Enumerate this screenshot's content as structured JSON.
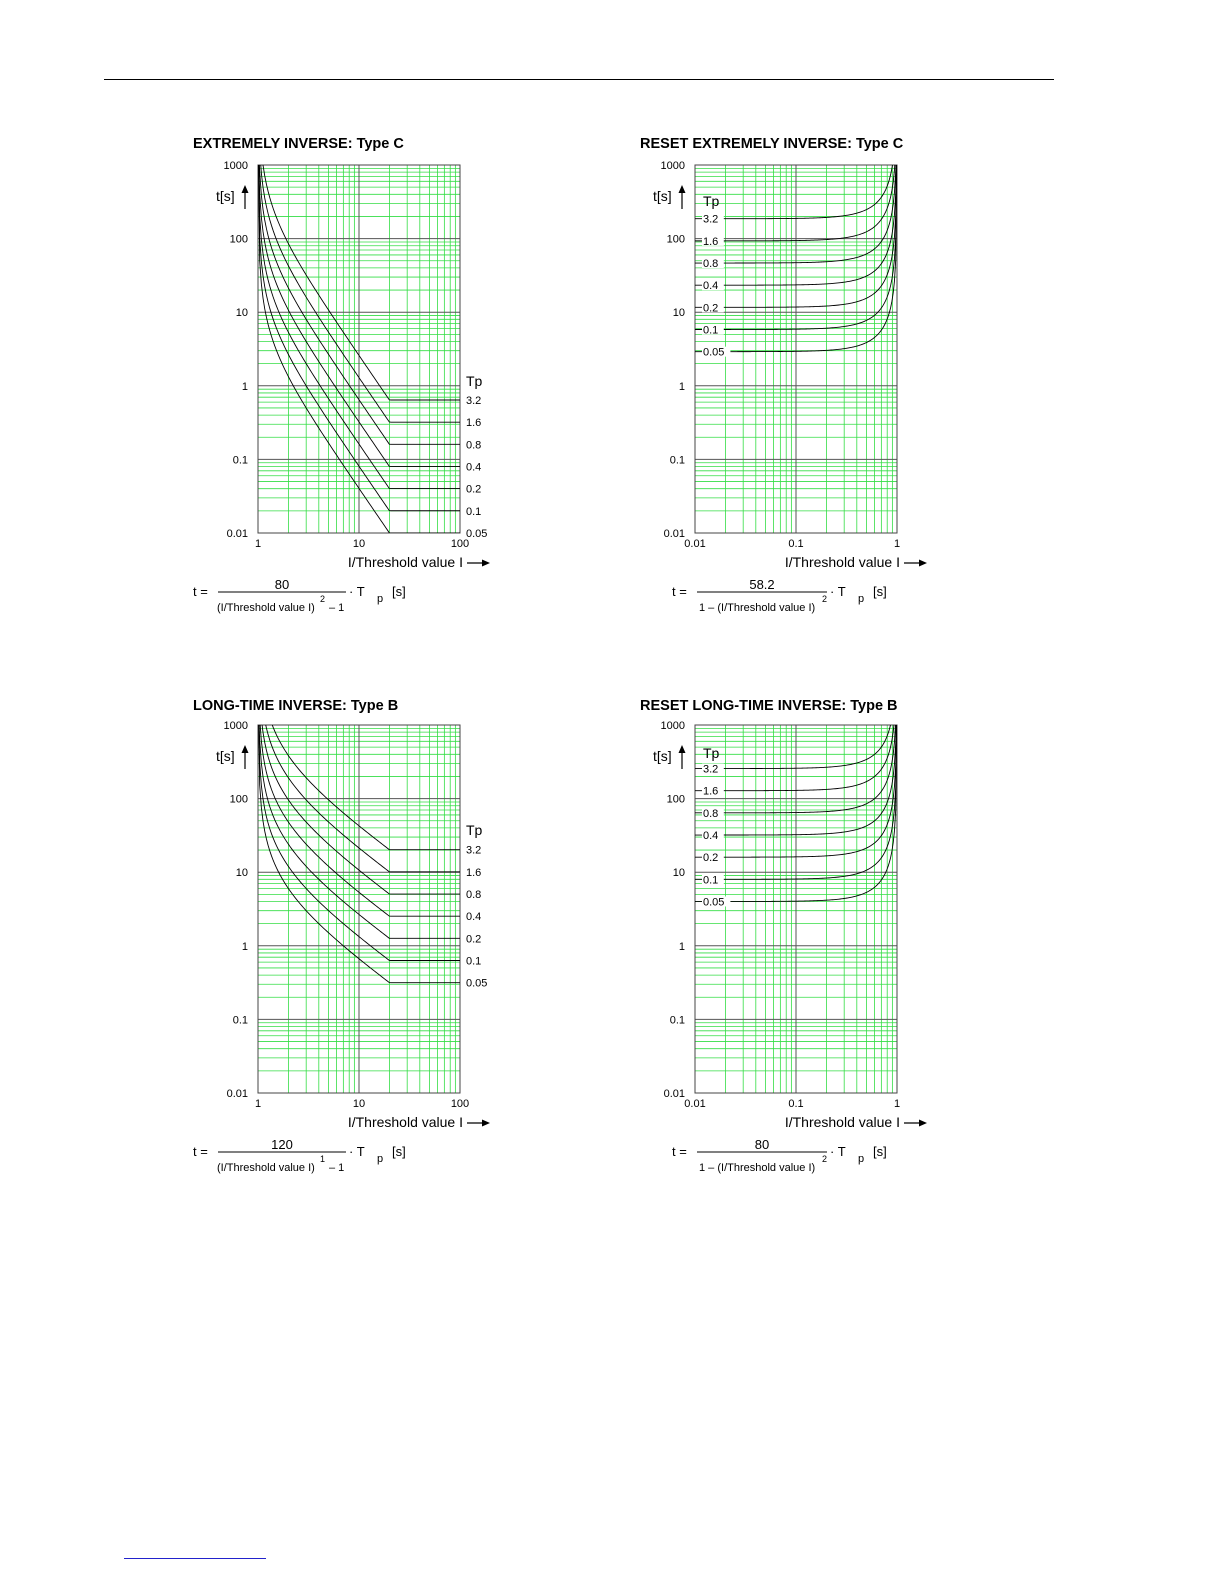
{
  "page": {
    "colors": {
      "grid": "#33dd44",
      "major_grid": "#555555",
      "curve": "#000000",
      "header_rule": "#000000",
      "footer_rule": "#2222cc"
    }
  },
  "chart_data": [
    {
      "type": "line",
      "title": "EXTREMELY INVERSE: Type C",
      "ylabel": "t[s]",
      "xlabel": "I/Threshold value I",
      "x_scale": "log",
      "y_scale": "log",
      "xlim": [
        1,
        100
      ],
      "ylim": [
        0.01,
        1000
      ],
      "x_ticks": [
        "1",
        "10",
        "100"
      ],
      "y_ticks": [
        "0.01",
        "0.1",
        "1",
        "10",
        "100",
        "1000"
      ],
      "grid": true,
      "legend_title": "Tp",
      "legend_position": "right",
      "tp_values": [
        3.2,
        1.6,
        0.8,
        0.4,
        0.2,
        0.1,
        0.05
      ],
      "tp_labels": [
        "3.2",
        "1.6",
        "0.8",
        "0.4",
        "0.2",
        "0.1",
        "0.05"
      ],
      "formula": {
        "numerator": "80",
        "denominator": "(I/Threshold value I)",
        "exponent": "2",
        "minus": "– 1",
        "prefix": "t  =",
        "suffix": "· T",
        "sub": "p",
        "unit": "[s]"
      },
      "curve": {
        "kind": "trip",
        "k": 80,
        "alpha": 2,
        "x_cap": 20
      }
    },
    {
      "type": "line",
      "title": "RESET EXTREMELY INVERSE: Type C",
      "ylabel": "t[s]",
      "xlabel": "I/Threshold value I",
      "x_scale": "log",
      "y_scale": "log",
      "xlim": [
        0.01,
        1
      ],
      "ylim": [
        0.01,
        1000
      ],
      "x_ticks": [
        "0.01",
        "0.1",
        "1"
      ],
      "y_ticks": [
        "0.01",
        "0.1",
        "1",
        "10",
        "100",
        "1000"
      ],
      "grid": true,
      "legend_title": "Tp",
      "legend_position": "top-left",
      "tp_values": [
        3.2,
        1.6,
        0.8,
        0.4,
        0.2,
        0.1,
        0.05
      ],
      "tp_labels": [
        "3.2",
        "1.6",
        "0.8",
        "0.4",
        "0.2",
        "0.1",
        "0.05"
      ],
      "formula": {
        "numerator": "58.2",
        "denominator": "1 – (I/Threshold value I)",
        "exponent": "2",
        "minus": "",
        "prefix": "t  =",
        "suffix": "· T",
        "sub": "p",
        "unit": "[s]"
      },
      "curve": {
        "kind": "reset",
        "k": 58.2,
        "alpha": 2
      }
    },
    {
      "type": "line",
      "title": "LONG-TIME INVERSE: Type B",
      "ylabel": "t[s]",
      "xlabel": "I/Threshold value I",
      "x_scale": "log",
      "y_scale": "log",
      "xlim": [
        1,
        100
      ],
      "ylim": [
        0.01,
        1000
      ],
      "x_ticks": [
        "1",
        "10",
        "100"
      ],
      "y_ticks": [
        "0.01",
        "0.1",
        "1",
        "10",
        "100",
        "1000"
      ],
      "grid": true,
      "legend_title": "Tp",
      "legend_position": "right",
      "tp_values": [
        3.2,
        1.6,
        0.8,
        0.4,
        0.2,
        0.1,
        0.05
      ],
      "tp_labels": [
        "3.2",
        "1.6",
        "0.8",
        "0.4",
        "0.2",
        "0.1",
        "0.05"
      ],
      "formula": {
        "numerator": "120",
        "denominator": "(I/Threshold value I)",
        "exponent": "1",
        "minus": "– 1",
        "prefix": "t  =",
        "suffix": "· T",
        "sub": "p",
        "unit": "[s]"
      },
      "curve": {
        "kind": "trip",
        "k": 120,
        "alpha": 1,
        "x_cap": 20
      }
    },
    {
      "type": "line",
      "title": "RESET LONG-TIME INVERSE: Type B",
      "ylabel": "t[s]",
      "xlabel": "I/Threshold value I",
      "x_scale": "log",
      "y_scale": "log",
      "xlim": [
        0.01,
        1
      ],
      "ylim": [
        0.01,
        1000
      ],
      "x_ticks": [
        "0.01",
        "0.1",
        "1"
      ],
      "y_ticks": [
        "0.01",
        "0.1",
        "1",
        "10",
        "100",
        "1000"
      ],
      "grid": true,
      "legend_title": "Tp",
      "legend_position": "top-left",
      "tp_values": [
        3.2,
        1.6,
        0.8,
        0.4,
        0.2,
        0.1,
        0.05
      ],
      "tp_labels": [
        "3.2",
        "1.6",
        "0.8",
        "0.4",
        "0.2",
        "0.1",
        "0.05"
      ],
      "formula": {
        "numerator": "80",
        "denominator": "1 – (I/Threshold value I)",
        "exponent": "2",
        "minus": "",
        "prefix": "t  =",
        "suffix": "· T",
        "sub": "p",
        "unit": "[s]"
      },
      "curve": {
        "kind": "reset",
        "k": 80,
        "alpha": 2
      }
    }
  ]
}
